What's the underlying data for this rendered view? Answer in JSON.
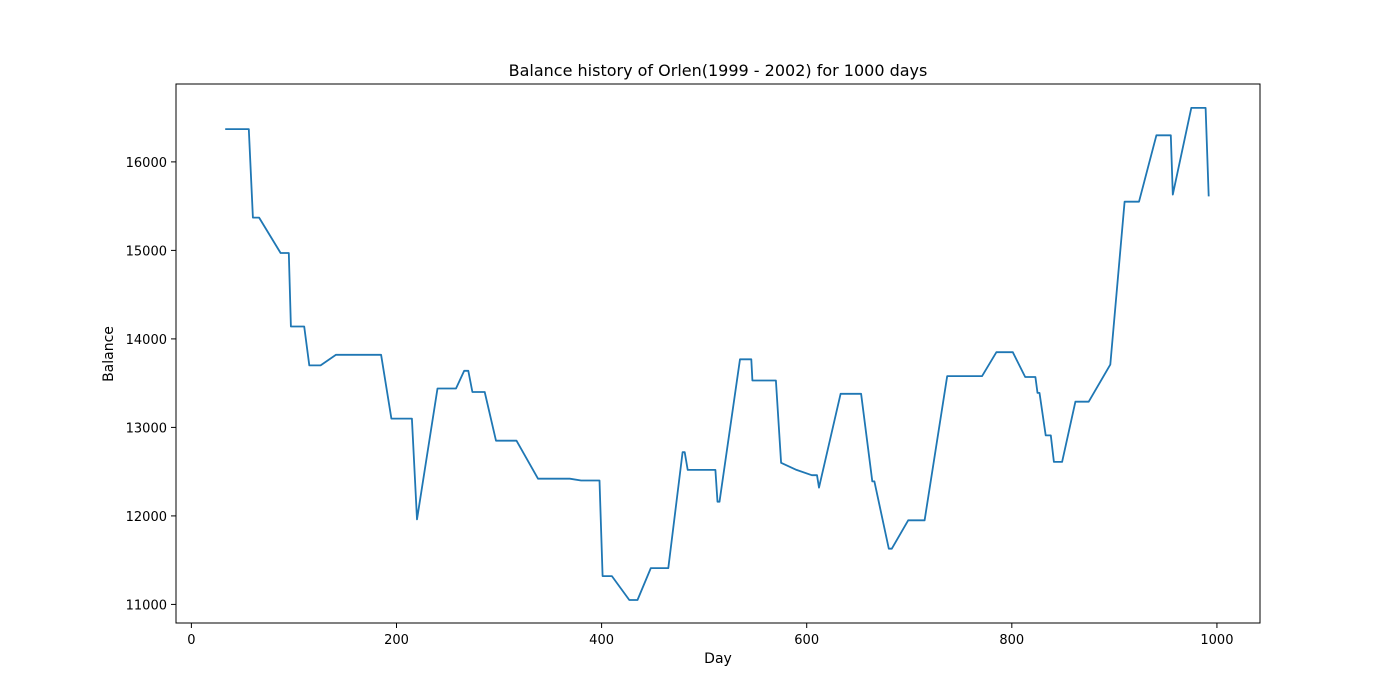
{
  "chart_data": {
    "type": "line",
    "title": "Balance history of Orlen(1999 - 2002) for 1000 days",
    "xlabel": "Day",
    "ylabel": "Balance",
    "xlim": [
      -15,
      1042
    ],
    "ylim": [
      10790,
      16880
    ],
    "xticks": [
      0,
      200,
      400,
      600,
      800,
      1000
    ],
    "yticks": [
      11000,
      12000,
      13000,
      14000,
      15000,
      16000
    ],
    "grid": false,
    "series": [
      {
        "color": "#1f77b4",
        "x": [
          33,
          56,
          60,
          66,
          87,
          95,
          97,
          110,
          115,
          126,
          141,
          185,
          195,
          215,
          220,
          240,
          258,
          266,
          270,
          274,
          286,
          297,
          317,
          338,
          369,
          380,
          398,
          401,
          410,
          427,
          435,
          448,
          465,
          479,
          481,
          484,
          511,
          513,
          515,
          535,
          546,
          547,
          570,
          575,
          590,
          605,
          610,
          612,
          633,
          653,
          664,
          666,
          680,
          683,
          699,
          715,
          737,
          771,
          785,
          801,
          813,
          823,
          825,
          827,
          833,
          838,
          841,
          849,
          862,
          875,
          896,
          910,
          924,
          941,
          955,
          957,
          975,
          989,
          992
        ],
        "y": [
          16370,
          16370,
          15370,
          15370,
          14970,
          14970,
          14140,
          14140,
          13700,
          13700,
          13820,
          13820,
          13100,
          13100,
          11960,
          13440,
          13440,
          13640,
          13640,
          13400,
          13400,
          12850,
          12850,
          12420,
          12420,
          12400,
          12400,
          11320,
          11320,
          11050,
          11050,
          11410,
          11410,
          12720,
          12720,
          12520,
          12520,
          12160,
          12160,
          13770,
          13770,
          13530,
          13530,
          12600,
          12520,
          12460,
          12460,
          12320,
          13380,
          13380,
          12390,
          12390,
          11630,
          11630,
          11950,
          11950,
          13580,
          13580,
          13850,
          13850,
          13570,
          13570,
          13390,
          13390,
          12910,
          12910,
          12610,
          12610,
          13290,
          13290,
          13710,
          15550,
          15550,
          16300,
          16300,
          15630,
          16610,
          16610,
          15610
        ]
      }
    ]
  }
}
